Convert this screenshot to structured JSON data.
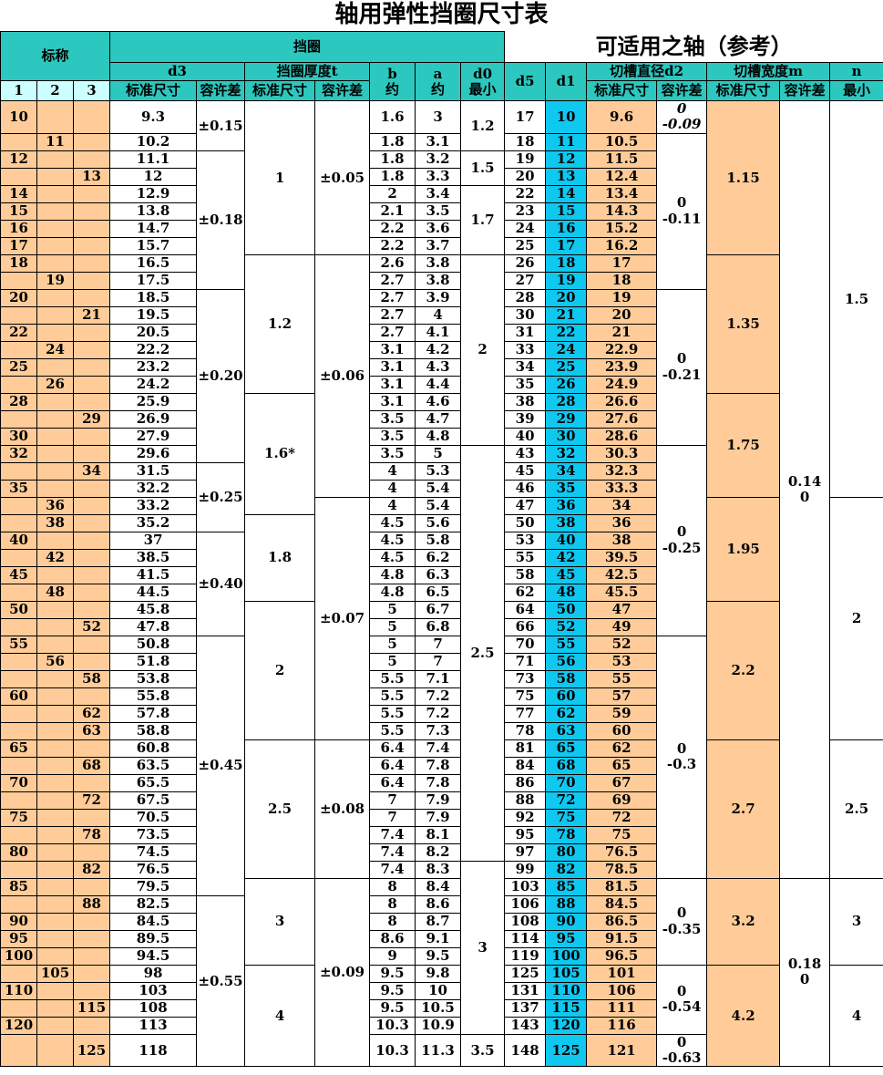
{
  "title": "轴用弹性挡圈尺寸表",
  "colors": {
    "header_teal": "#2CC7BE",
    "subheader_cyan": "#CCFFFF",
    "cell_peach": "#FFCC99",
    "d1_blue": "#0FC8F0",
    "border": "#000000"
  },
  "header": {
    "nominal": "标称",
    "ring": "挡圈",
    "shaft": "可适用之轴（参考）",
    "d3": "d3",
    "thickness": "挡圈厚度t",
    "b": "b",
    "a": "a",
    "d0": "d0",
    "d5": "d5",
    "d1": "d1",
    "d2": "切槽直径d2",
    "m": "切槽宽度m",
    "n": "n",
    "std": "标准尺寸",
    "tol": "容许差",
    "approx": "约",
    "min": "最小",
    "col1": "1",
    "col2": "2",
    "col3": "3"
  },
  "rows": [
    [
      "10",
      1,
      "9.3",
      "1.6",
      "3",
      "17",
      "10",
      "9.6"
    ],
    [
      "11",
      2,
      "10.2",
      "1.8",
      "3.1",
      "18",
      "11",
      "10.5"
    ],
    [
      "12",
      1,
      "11.1",
      "1.8",
      "3.2",
      "19",
      "12",
      "11.5"
    ],
    [
      "13",
      3,
      "12",
      "1.8",
      "3.3",
      "20",
      "13",
      "12.4"
    ],
    [
      "14",
      1,
      "12.9",
      "2",
      "3.4",
      "22",
      "14",
      "13.4"
    ],
    [
      "15",
      1,
      "13.8",
      "2.1",
      "3.5",
      "23",
      "15",
      "14.3"
    ],
    [
      "16",
      1,
      "14.7",
      "2.2",
      "3.6",
      "24",
      "16",
      "15.2"
    ],
    [
      "17",
      1,
      "15.7",
      "2.2",
      "3.7",
      "25",
      "17",
      "16.2"
    ],
    [
      "18",
      1,
      "16.5",
      "2.6",
      "3.8",
      "26",
      "18",
      "17"
    ],
    [
      "19",
      2,
      "17.5",
      "2.7",
      "3.8",
      "27",
      "19",
      "18"
    ],
    [
      "20",
      1,
      "18.5",
      "2.7",
      "3.9",
      "28",
      "20",
      "19"
    ],
    [
      "21",
      3,
      "19.5",
      "2.7",
      "4",
      "30",
      "21",
      "20"
    ],
    [
      "22",
      1,
      "20.5",
      "2.7",
      "4.1",
      "31",
      "22",
      "21"
    ],
    [
      "24",
      2,
      "22.2",
      "3.1",
      "4.2",
      "33",
      "24",
      "22.9"
    ],
    [
      "25",
      1,
      "23.2",
      "3.1",
      "4.3",
      "34",
      "25",
      "23.9"
    ],
    [
      "26",
      2,
      "24.2",
      "3.1",
      "4.4",
      "35",
      "26",
      "24.9"
    ],
    [
      "28",
      1,
      "25.9",
      "3.1",
      "4.6",
      "38",
      "28",
      "26.6"
    ],
    [
      "29",
      3,
      "26.9",
      "3.5",
      "4.7",
      "39",
      "29",
      "27.6"
    ],
    [
      "30",
      1,
      "27.9",
      "3.5",
      "4.8",
      "40",
      "30",
      "28.6"
    ],
    [
      "32",
      1,
      "29.6",
      "3.5",
      "5",
      "43",
      "32",
      "30.3"
    ],
    [
      "34",
      3,
      "31.5",
      "4",
      "5.3",
      "45",
      "34",
      "32.3"
    ],
    [
      "35",
      1,
      "32.2",
      "4",
      "5.4",
      "46",
      "35",
      "33.3"
    ],
    [
      "36",
      2,
      "33.2",
      "4",
      "5.4",
      "47",
      "36",
      "34"
    ],
    [
      "38",
      2,
      "35.2",
      "4.5",
      "5.6",
      "50",
      "38",
      "36"
    ],
    [
      "40",
      1,
      "37",
      "4.5",
      "5.8",
      "53",
      "40",
      "38"
    ],
    [
      "42",
      2,
      "38.5",
      "4.5",
      "6.2",
      "55",
      "42",
      "39.5"
    ],
    [
      "45",
      1,
      "41.5",
      "4.8",
      "6.3",
      "58",
      "45",
      "42.5"
    ],
    [
      "48",
      2,
      "44.5",
      "4.8",
      "6.5",
      "62",
      "48",
      "45.5"
    ],
    [
      "50",
      1,
      "45.8",
      "5",
      "6.7",
      "64",
      "50",
      "47"
    ],
    [
      "52",
      3,
      "47.8",
      "5",
      "6.8",
      "66",
      "52",
      "49"
    ],
    [
      "55",
      1,
      "50.8",
      "5",
      "7",
      "70",
      "55",
      "52"
    ],
    [
      "56",
      2,
      "51.8",
      "5",
      "7",
      "71",
      "56",
      "53"
    ],
    [
      "58",
      3,
      "53.8",
      "5.5",
      "7.1",
      "73",
      "58",
      "55"
    ],
    [
      "60",
      1,
      "55.8",
      "5.5",
      "7.2",
      "75",
      "60",
      "57"
    ],
    [
      "62",
      3,
      "57.8",
      "5.5",
      "7.2",
      "77",
      "62",
      "59"
    ],
    [
      "63",
      3,
      "58.8",
      "5.5",
      "7.3",
      "78",
      "63",
      "60"
    ],
    [
      "65",
      1,
      "60.8",
      "6.4",
      "7.4",
      "81",
      "65",
      "62"
    ],
    [
      "68",
      3,
      "63.5",
      "6.4",
      "7.8",
      "84",
      "68",
      "65"
    ],
    [
      "70",
      1,
      "65.5",
      "6.4",
      "7.8",
      "86",
      "70",
      "67"
    ],
    [
      "72",
      3,
      "67.5",
      "7",
      "7.9",
      "88",
      "72",
      "69"
    ],
    [
      "75",
      1,
      "70.5",
      "7",
      "7.9",
      "92",
      "75",
      "72"
    ],
    [
      "78",
      3,
      "73.5",
      "7.4",
      "8.1",
      "95",
      "78",
      "75"
    ],
    [
      "80",
      1,
      "74.5",
      "7.4",
      "8.2",
      "97",
      "80",
      "76.5"
    ],
    [
      "82",
      3,
      "76.5",
      "7.4",
      "8.3",
      "99",
      "82",
      "78.5"
    ],
    [
      "85",
      1,
      "79.5",
      "8",
      "8.4",
      "103",
      "85",
      "81.5"
    ],
    [
      "88",
      3,
      "82.5",
      "8",
      "8.6",
      "106",
      "88",
      "84.5"
    ],
    [
      "90",
      1,
      "84.5",
      "8",
      "8.7",
      "108",
      "90",
      "86.5"
    ],
    [
      "95",
      1,
      "89.5",
      "8.6",
      "9.1",
      "114",
      "95",
      "91.5"
    ],
    [
      "100",
      1,
      "94.5",
      "9",
      "9.5",
      "119",
      "100",
      "96.5"
    ],
    [
      "105",
      2,
      "98",
      "9.5",
      "9.8",
      "125",
      "105",
      "101"
    ],
    [
      "110",
      1,
      "103",
      "9.5",
      "10",
      "131",
      "110",
      "106"
    ],
    [
      "115",
      3,
      "108",
      "9.5",
      "10.5",
      "137",
      "115",
      "111"
    ],
    [
      "120",
      1,
      "113",
      "10.3",
      "10.9",
      "143",
      "120",
      "116"
    ],
    [
      "125",
      3,
      "118",
      "10.3",
      "11.3",
      "148",
      "125",
      "121"
    ]
  ],
  "spans": {
    "d3tol": [
      [
        1,
        2,
        "±0.15"
      ],
      [
        3,
        8,
        "±0.18"
      ],
      [
        11,
        10,
        "±0.20"
      ],
      [
        21,
        4,
        "±0.25"
      ],
      [
        25,
        6,
        "±0.40"
      ],
      [
        31,
        15,
        "±0.45"
      ],
      [
        46,
        9,
        "±0.55"
      ]
    ],
    "t": [
      [
        1,
        8,
        "1"
      ],
      [
        9,
        8,
        "1.2"
      ],
      [
        17,
        7,
        "1.6*"
      ],
      [
        24,
        5,
        "1.8"
      ],
      [
        29,
        8,
        "2"
      ],
      [
        37,
        8,
        "2.5"
      ],
      [
        45,
        5,
        "3"
      ],
      [
        50,
        5,
        "4"
      ]
    ],
    "ttol": [
      [
        1,
        8,
        "±0.05"
      ],
      [
        9,
        14,
        "±0.06"
      ],
      [
        23,
        14,
        "±0.07"
      ],
      [
        37,
        8,
        "±0.08"
      ],
      [
        45,
        10,
        "±0.09"
      ]
    ],
    "d0": [
      [
        1,
        2,
        "1.2"
      ],
      [
        3,
        2,
        "1.5"
      ],
      [
        5,
        4,
        "1.7"
      ],
      [
        9,
        11,
        "2"
      ],
      [
        20,
        24,
        "2.5"
      ],
      [
        44,
        10,
        "3"
      ],
      [
        54,
        1,
        "3.5"
      ]
    ],
    "d2tol": [
      [
        1,
        1,
        [
          "0",
          "-0.09"
        ],
        "italic"
      ],
      [
        2,
        9,
        [
          "0",
          "-0.11"
        ]
      ],
      [
        11,
        9,
        [
          "0",
          "-0.21"
        ]
      ],
      [
        20,
        11,
        [
          "0",
          "-0.25"
        ]
      ],
      [
        31,
        14,
        [
          "0",
          "-0.3"
        ]
      ],
      [
        45,
        5,
        [
          "0",
          "-0.35"
        ]
      ],
      [
        50,
        4,
        [
          "0",
          "-0.54"
        ]
      ],
      [
        54,
        1,
        [
          "0",
          "-0.63"
        ]
      ]
    ],
    "m": [
      [
        1,
        8,
        "1.15"
      ],
      [
        9,
        8,
        "1.35"
      ],
      [
        17,
        6,
        "1.75"
      ],
      [
        23,
        6,
        "1.95"
      ],
      [
        29,
        8,
        "2.2"
      ],
      [
        37,
        8,
        "2.7"
      ],
      [
        45,
        5,
        "3.2"
      ],
      [
        50,
        5,
        "4.2"
      ]
    ],
    "mtol": [
      [
        1,
        44,
        [
          "0.14",
          "0"
        ]
      ],
      [
        45,
        10,
        [
          "0.18",
          "0"
        ]
      ]
    ],
    "n": [
      [
        1,
        22,
        "1.5"
      ],
      [
        23,
        14,
        "2"
      ],
      [
        37,
        8,
        "2.5"
      ],
      [
        45,
        5,
        "3"
      ],
      [
        50,
        5,
        "4"
      ]
    ]
  }
}
